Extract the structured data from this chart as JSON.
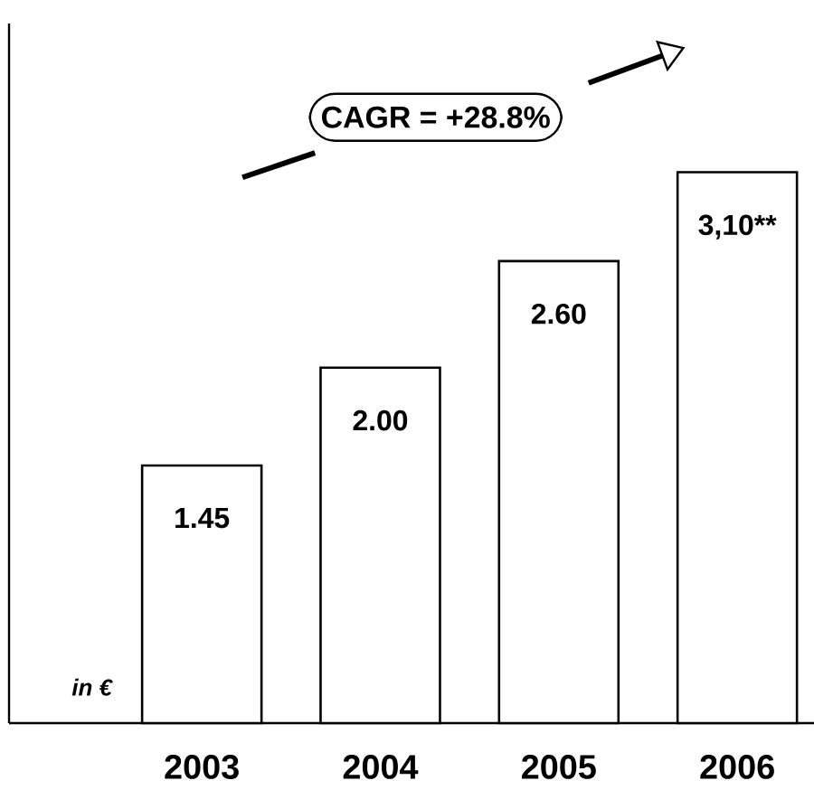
{
  "chart_data": {
    "type": "bar",
    "categories": [
      "2003",
      "2004",
      "2005",
      "2006"
    ],
    "values": [
      1.45,
      2.0,
      2.6,
      3.1
    ],
    "value_labels": [
      "1.45",
      "2.00",
      "2.60",
      "3,10**"
    ],
    "color": "#ffffff",
    "annotations": [
      "CAGR = +28.8%",
      "in €"
    ]
  }
}
